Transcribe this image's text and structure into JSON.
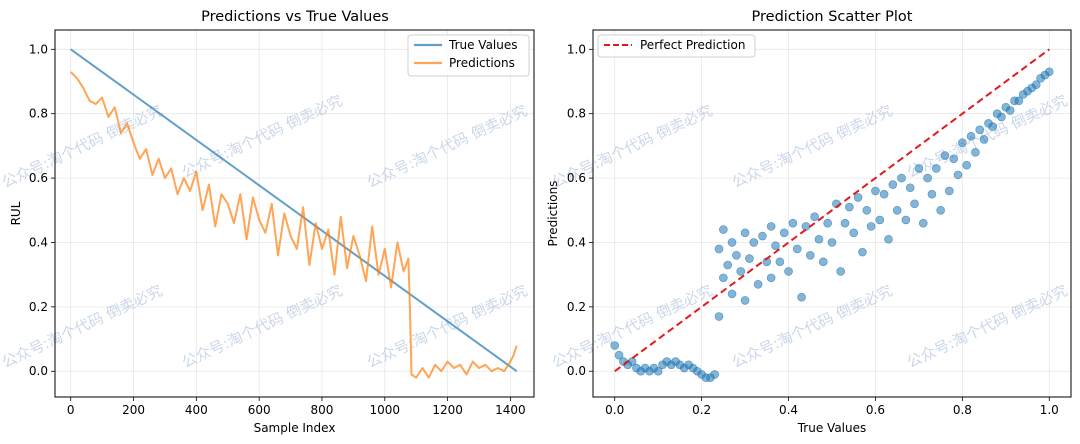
{
  "watermark": "公众号:淘个代码 倒卖必究",
  "chart_data": [
    {
      "type": "line",
      "title": "Predictions vs True Values",
      "xlabel": "Sample Index",
      "ylabel": "RUL",
      "xlim": [
        -50,
        1475
      ],
      "ylim": [
        -0.08,
        1.06
      ],
      "xticks": [
        0,
        200,
        400,
        600,
        800,
        1000,
        1200,
        1400
      ],
      "yticks": [
        0.0,
        0.2,
        0.4,
        0.6,
        0.8,
        1.0
      ],
      "grid": true,
      "legend": "top-right",
      "series": [
        {
          "name": "True Values",
          "color": "#1f77b4",
          "x": [
            0,
            1420
          ],
          "y": [
            1.0,
            0.0
          ]
        },
        {
          "name": "Predictions",
          "color": "#ff7f0e",
          "x": [
            0,
            20,
            40,
            60,
            80,
            100,
            120,
            140,
            160,
            180,
            200,
            220,
            240,
            260,
            280,
            300,
            320,
            340,
            360,
            380,
            400,
            420,
            440,
            460,
            480,
            500,
            520,
            540,
            560,
            580,
            600,
            620,
            640,
            660,
            680,
            700,
            720,
            740,
            760,
            780,
            800,
            820,
            840,
            860,
            880,
            900,
            920,
            940,
            960,
            980,
            1000,
            1020,
            1040,
            1060,
            1075,
            1080,
            1085,
            1100,
            1120,
            1140,
            1160,
            1180,
            1200,
            1220,
            1240,
            1260,
            1280,
            1300,
            1320,
            1340,
            1360,
            1380,
            1400,
            1410,
            1420
          ],
          "y": [
            0.93,
            0.91,
            0.88,
            0.84,
            0.83,
            0.85,
            0.79,
            0.82,
            0.74,
            0.77,
            0.71,
            0.66,
            0.69,
            0.61,
            0.66,
            0.6,
            0.63,
            0.55,
            0.6,
            0.56,
            0.62,
            0.5,
            0.58,
            0.45,
            0.55,
            0.52,
            0.46,
            0.55,
            0.41,
            0.54,
            0.47,
            0.43,
            0.52,
            0.36,
            0.49,
            0.42,
            0.38,
            0.51,
            0.33,
            0.46,
            0.38,
            0.44,
            0.3,
            0.48,
            0.32,
            0.42,
            0.36,
            0.28,
            0.45,
            0.3,
            0.38,
            0.26,
            0.4,
            0.31,
            0.35,
            0.2,
            -0.01,
            -0.02,
            0.01,
            -0.02,
            0.02,
            0.0,
            0.03,
            0.01,
            0.02,
            -0.01,
            0.03,
            0.01,
            0.02,
            0.0,
            0.01,
            0.0,
            0.03,
            0.05,
            0.08
          ]
        }
      ]
    },
    {
      "type": "scatter",
      "title": "Prediction Scatter Plot",
      "xlabel": "True Values",
      "ylabel": "Predictions",
      "xlim": [
        -0.05,
        1.05
      ],
      "ylim": [
        -0.08,
        1.06
      ],
      "xticks": [
        0.0,
        0.2,
        0.4,
        0.6,
        0.8,
        1.0
      ],
      "yticks": [
        0.0,
        0.2,
        0.4,
        0.6,
        0.8,
        1.0
      ],
      "grid": true,
      "legend": "top-left",
      "reference_line": {
        "name": "Perfect Prediction",
        "color": "#e31a1c",
        "x": [
          0,
          1
        ],
        "y": [
          0,
          1
        ]
      },
      "point_color": "#1f77b4",
      "points": [
        [
          0.0,
          0.08
        ],
        [
          0.01,
          0.05
        ],
        [
          0.02,
          0.03
        ],
        [
          0.03,
          0.02
        ],
        [
          0.04,
          0.03
        ],
        [
          0.05,
          0.01
        ],
        [
          0.06,
          0.0
        ],
        [
          0.07,
          0.01
        ],
        [
          0.08,
          0.0
        ],
        [
          0.09,
          0.01
        ],
        [
          0.1,
          0.0
        ],
        [
          0.11,
          0.02
        ],
        [
          0.12,
          0.03
        ],
        [
          0.13,
          0.02
        ],
        [
          0.14,
          0.03
        ],
        [
          0.15,
          0.02
        ],
        [
          0.16,
          0.01
        ],
        [
          0.17,
          0.02
        ],
        [
          0.18,
          0.01
        ],
        [
          0.19,
          0.0
        ],
        [
          0.2,
          -0.01
        ],
        [
          0.21,
          -0.02
        ],
        [
          0.22,
          -0.02
        ],
        [
          0.23,
          -0.01
        ],
        [
          0.24,
          0.38
        ],
        [
          0.24,
          0.17
        ],
        [
          0.25,
          0.29
        ],
        [
          0.25,
          0.44
        ],
        [
          0.26,
          0.33
        ],
        [
          0.27,
          0.4
        ],
        [
          0.27,
          0.24
        ],
        [
          0.28,
          0.36
        ],
        [
          0.29,
          0.31
        ],
        [
          0.3,
          0.43
        ],
        [
          0.3,
          0.22
        ],
        [
          0.31,
          0.35
        ],
        [
          0.32,
          0.4
        ],
        [
          0.33,
          0.27
        ],
        [
          0.34,
          0.42
        ],
        [
          0.35,
          0.34
        ],
        [
          0.36,
          0.45
        ],
        [
          0.36,
          0.29
        ],
        [
          0.37,
          0.39
        ],
        [
          0.38,
          0.34
        ],
        [
          0.39,
          0.43
        ],
        [
          0.4,
          0.31
        ],
        [
          0.41,
          0.46
        ],
        [
          0.42,
          0.38
        ],
        [
          0.43,
          0.23
        ],
        [
          0.44,
          0.45
        ],
        [
          0.45,
          0.36
        ],
        [
          0.46,
          0.48
        ],
        [
          0.47,
          0.41
        ],
        [
          0.48,
          0.34
        ],
        [
          0.49,
          0.46
        ],
        [
          0.5,
          0.4
        ],
        [
          0.51,
          0.52
        ],
        [
          0.52,
          0.31
        ],
        [
          0.53,
          0.46
        ],
        [
          0.54,
          0.51
        ],
        [
          0.55,
          0.43
        ],
        [
          0.56,
          0.54
        ],
        [
          0.57,
          0.37
        ],
        [
          0.58,
          0.5
        ],
        [
          0.59,
          0.45
        ],
        [
          0.6,
          0.56
        ],
        [
          0.61,
          0.47
        ],
        [
          0.62,
          0.55
        ],
        [
          0.63,
          0.41
        ],
        [
          0.64,
          0.58
        ],
        [
          0.65,
          0.5
        ],
        [
          0.66,
          0.6
        ],
        [
          0.67,
          0.47
        ],
        [
          0.68,
          0.57
        ],
        [
          0.69,
          0.52
        ],
        [
          0.7,
          0.63
        ],
        [
          0.71,
          0.46
        ],
        [
          0.72,
          0.6
        ],
        [
          0.73,
          0.55
        ],
        [
          0.74,
          0.63
        ],
        [
          0.75,
          0.5
        ],
        [
          0.76,
          0.67
        ],
        [
          0.77,
          0.56
        ],
        [
          0.78,
          0.66
        ],
        [
          0.79,
          0.61
        ],
        [
          0.8,
          0.71
        ],
        [
          0.81,
          0.64
        ],
        [
          0.82,
          0.73
        ],
        [
          0.83,
          0.68
        ],
        [
          0.84,
          0.75
        ],
        [
          0.85,
          0.72
        ],
        [
          0.86,
          0.77
        ],
        [
          0.87,
          0.76
        ],
        [
          0.88,
          0.8
        ],
        [
          0.89,
          0.79
        ],
        [
          0.9,
          0.82
        ],
        [
          0.91,
          0.81
        ],
        [
          0.92,
          0.84
        ],
        [
          0.93,
          0.84
        ],
        [
          0.94,
          0.86
        ],
        [
          0.95,
          0.87
        ],
        [
          0.96,
          0.88
        ],
        [
          0.97,
          0.89
        ],
        [
          0.98,
          0.91
        ],
        [
          0.99,
          0.92
        ],
        [
          1.0,
          0.93
        ]
      ]
    }
  ]
}
